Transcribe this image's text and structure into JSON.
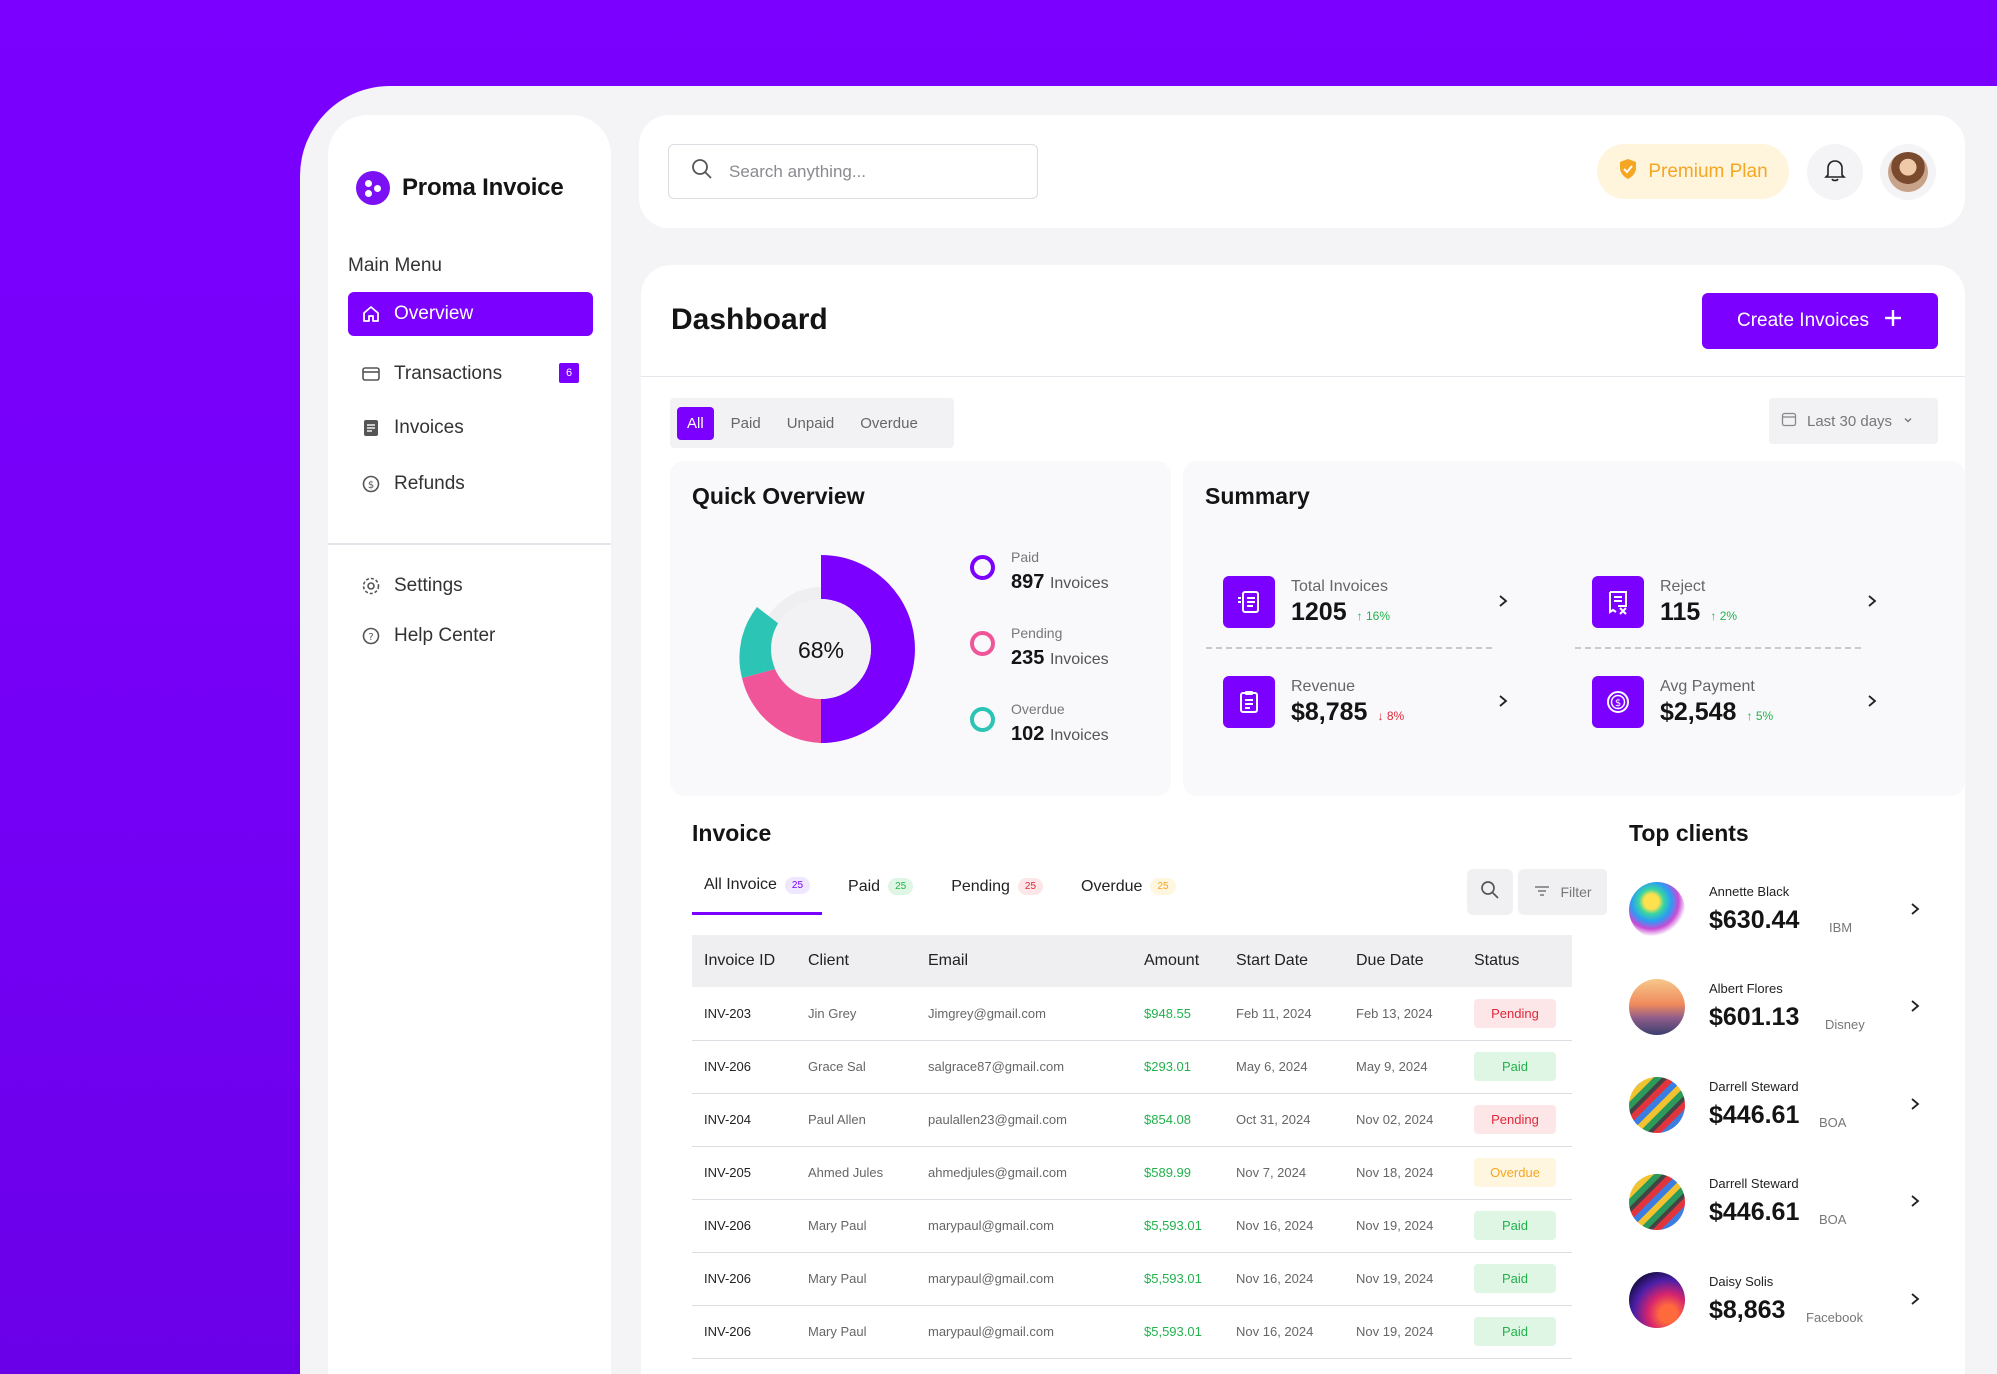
{
  "brand": {
    "name": "Proma Invoice"
  },
  "sidebar": {
    "menu_title": "Main Menu",
    "items": [
      {
        "label": "Overview",
        "icon": "home-icon",
        "active": true
      },
      {
        "label": "Transactions",
        "icon": "card-icon",
        "badge": "6"
      },
      {
        "label": "Invoices",
        "icon": "document-icon"
      },
      {
        "label": "Refunds",
        "icon": "refund-icon"
      }
    ],
    "bottom_items": [
      {
        "label": "Settings",
        "icon": "gear-icon"
      },
      {
        "label": "Help Center",
        "icon": "help-icon"
      }
    ]
  },
  "topbar": {
    "search_placeholder": "Search anything...",
    "premium_label": "Premium Plan"
  },
  "dashboard": {
    "title": "Dashboard",
    "create_label": "Create Invoices",
    "filters": [
      "All",
      "Paid",
      "Unpaid",
      "Overdue"
    ],
    "active_filter": "All",
    "date_range": "Last 30 days"
  },
  "quick_overview": {
    "title": "Quick Overview",
    "center_label": "68%",
    "legend": [
      {
        "label": "Paid",
        "value": "897",
        "unit": "Invoices",
        "color": "#7b00ff"
      },
      {
        "label": "Pending",
        "value": "235",
        "unit": "Invoices",
        "color": "#f0559a"
      },
      {
        "label": "Overdue",
        "value": "102",
        "unit": "Invoices",
        "color": "#2cc4b4"
      }
    ]
  },
  "summary": {
    "title": "Summary",
    "items": [
      {
        "label": "Total Invoices",
        "value": "1205",
        "trend": "16%",
        "direction": "up",
        "icon": "receipt-list-icon"
      },
      {
        "label": "Reject",
        "value": "115",
        "trend": "2%",
        "direction": "up",
        "icon": "receipt-reject-icon"
      },
      {
        "label": "Revenue",
        "value": "$8,785",
        "trend": "8%",
        "direction": "down",
        "icon": "clipboard-icon"
      },
      {
        "label": "Avg Payment",
        "value": "$2,548",
        "trend": "5%",
        "direction": "up",
        "icon": "dollar-circle-icon"
      }
    ]
  },
  "invoice": {
    "title": "Invoice",
    "tabs": [
      {
        "label": "All Invoice",
        "count": "25",
        "bg": "#efe6ff",
        "fg": "#7b00ff"
      },
      {
        "label": "Paid",
        "count": "25",
        "bg": "#dff6e4",
        "fg": "#22b24c"
      },
      {
        "label": "Pending",
        "count": "25",
        "bg": "#fde6e8",
        "fg": "#e0283a"
      },
      {
        "label": "Overdue",
        "count": "25",
        "bg": "#fff6e0",
        "fg": "#f5a623"
      }
    ],
    "filter_label": "Filter",
    "columns": [
      "Invoice ID",
      "Client",
      "Email",
      "Amount",
      "Start Date",
      "Due Date",
      "Status"
    ],
    "rows": [
      {
        "id": "INV-203",
        "client": "Jin Grey",
        "email": "Jimgrey@gmail.com",
        "amount": "$948.55",
        "start": "Feb 11, 2024",
        "due": "Feb 13, 2024",
        "status": "Pending"
      },
      {
        "id": "INV-206",
        "client": "Grace Sal",
        "email": "salgrace87@gmail.com",
        "amount": "$293.01",
        "start": "May 6, 2024",
        "due": "May 9, 2024",
        "status": "Paid"
      },
      {
        "id": "INV-204",
        "client": "Paul Allen",
        "email": "paulallen23@gmail.com",
        "amount": "$854.08",
        "start": "Oct 31, 2024",
        "due": "Nov 02, 2024",
        "status": "Pending"
      },
      {
        "id": "INV-205",
        "client": "Ahmed Jules",
        "email": "ahmedjules@gmail.com",
        "amount": "$589.99",
        "start": "Nov 7, 2024",
        "due": "Nov 18, 2024",
        "status": "Overdue"
      },
      {
        "id": "INV-206",
        "client": "Mary Paul",
        "email": "marypaul@gmail.com",
        "amount": "$5,593.01",
        "start": "Nov 16, 2024",
        "due": "Nov 19, 2024",
        "status": "Paid"
      },
      {
        "id": "INV-206",
        "client": "Mary Paul",
        "email": "marypaul@gmail.com",
        "amount": "$5,593.01",
        "start": "Nov 16, 2024",
        "due": "Nov 19, 2024",
        "status": "Paid"
      },
      {
        "id": "INV-206",
        "client": "Mary Paul",
        "email": "marypaul@gmail.com",
        "amount": "$5,593.01",
        "start": "Nov 16, 2024",
        "due": "Nov 19, 2024",
        "status": "Paid"
      }
    ]
  },
  "top_clients": {
    "title": "Top clients",
    "items": [
      {
        "name": "Annette Black",
        "amount": "$630.44",
        "company": "IBM",
        "avatar": "colorful-smoke"
      },
      {
        "name": "Albert Flores",
        "amount": "$601.13",
        "company": "Disney",
        "avatar": "sunset-landscape"
      },
      {
        "name": "Darrell Steward",
        "amount": "$446.61",
        "company": "BOA",
        "avatar": "colorful-stairs"
      },
      {
        "name": "Darrell Steward",
        "amount": "$446.61",
        "company": "BOA",
        "avatar": "colorful-stairs"
      },
      {
        "name": "Daisy Solis",
        "amount": "$8,863",
        "company": "Facebook",
        "avatar": "gradient-orb"
      }
    ]
  }
}
